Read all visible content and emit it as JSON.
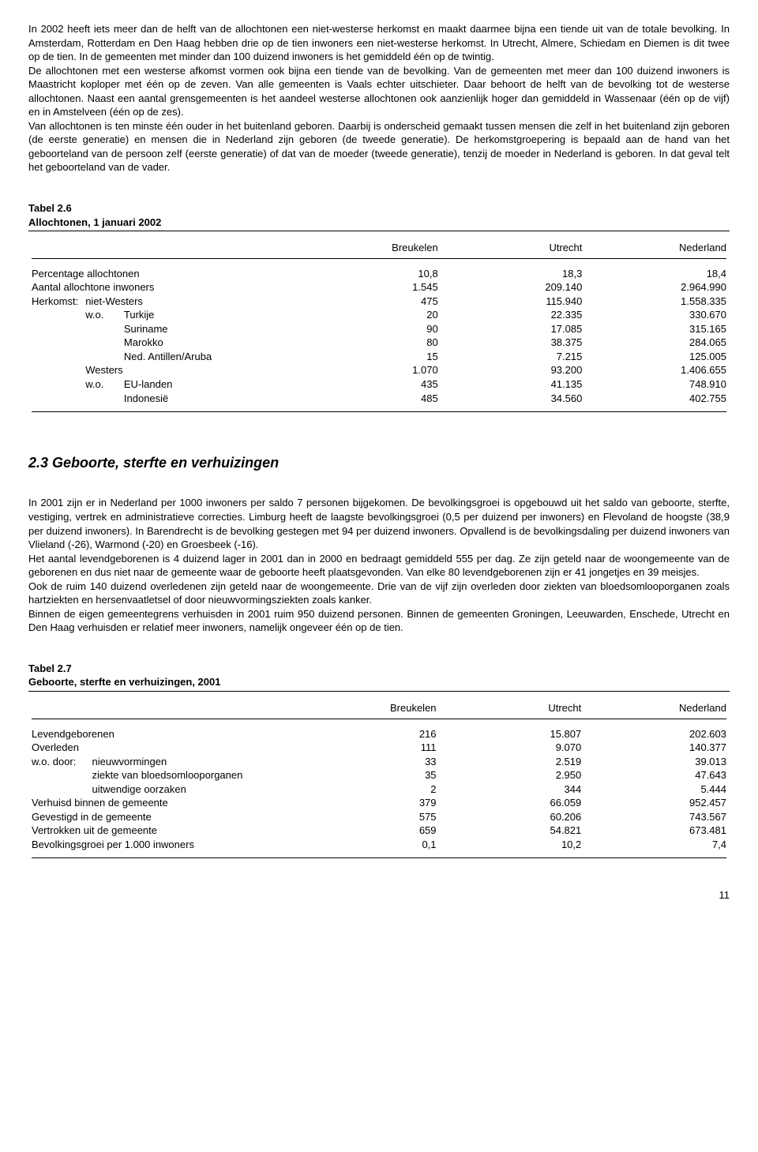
{
  "para1": "In 2002 heeft iets meer dan de helft van de allochtonen een niet-westerse herkomst en maakt daarmee bijna een tiende uit van de totale bevolking. In Amsterdam, Rotterdam en Den Haag hebben drie op de tien inwoners een niet-westerse herkomst. In Utrecht, Almere, Schiedam en Diemen is dit twee op de tien. In de gemeenten met minder dan 100 duizend inwoners is het gemiddeld één op de twintig.",
  "para2": "De allochtonen met een westerse afkomst vormen ook bijna een tiende van de bevolking. Van de gemeenten met meer dan 100 duizend inwoners is Maastricht koploper met één op de zeven. Van alle gemeenten is Vaals echter uitschieter. Daar behoort de helft van de bevolking tot de westerse allochtonen. Naast een aantal grensgemeenten is het aandeel westerse allochtonen ook aanzienlijk hoger dan gemiddeld in Wassenaar (één op de vijf) en in Amstelveen (één op de zes).",
  "para3": "Van allochtonen is ten minste één ouder in het buitenland geboren. Daarbij is onderscheid gemaakt tussen mensen die zelf in het buitenland zijn geboren (de eerste generatie) en mensen die in Nederland zijn geboren (de tweede generatie). De herkomstgroepering is bepaald aan de hand van het geboorteland van de persoon zelf (eerste generatie) of dat van de moeder (tweede generatie), tenzij de moeder in Nederland is geboren. In dat geval telt het geboorteland van de vader.",
  "table26": {
    "label": "Tabel 2.6",
    "title": "Allochtonen, 1 januari 2002",
    "cols": [
      "Breukelen",
      "Utrecht",
      "Nederland"
    ],
    "rows": [
      {
        "c": "",
        "l": "Percentage allochtonen",
        "v": [
          "10,8",
          "18,3",
          "18,4"
        ]
      },
      {
        "c": "",
        "l": "Aantal allochtone inwoners",
        "v": [
          "1.545",
          "209.140",
          "2.964.990"
        ]
      },
      {
        "c": "h0",
        "l": "Herkomst:",
        "l2": "niet-Westers",
        "v": [
          "475",
          "115.940",
          "1.558.335"
        ]
      },
      {
        "c": "wo",
        "l": "w.o.",
        "l2": "Turkije",
        "v": [
          "20",
          "22.335",
          "330.670"
        ]
      },
      {
        "c": "i2",
        "l": "Suriname",
        "v": [
          "90",
          "17.085",
          "315.165"
        ]
      },
      {
        "c": "i2",
        "l": "Marokko",
        "v": [
          "80",
          "38.375",
          "284.065"
        ]
      },
      {
        "c": "i2",
        "l": "Ned. Antillen/Aruba",
        "v": [
          "15",
          "7.215",
          "125.005"
        ]
      },
      {
        "c": "i1",
        "l": "Westers",
        "v": [
          "1.070",
          "93.200",
          "1.406.655"
        ]
      },
      {
        "c": "wo",
        "l": "w.o.",
        "l2": "EU-landen",
        "v": [
          "435",
          "41.135",
          "748.910"
        ]
      },
      {
        "c": "i2",
        "l": "Indonesië",
        "v": [
          "485",
          "34.560",
          "402.755"
        ]
      }
    ]
  },
  "section23": "2.3 Geboorte, sterfte en verhuizingen",
  "para4": "In 2001 zijn er in Nederland per 1000 inwoners per saldo 7 personen bijgekomen. De bevolkingsgroei is opgebouwd uit het saldo van geboorte, sterfte, vestiging, vertrek en administratieve correcties. Limburg heeft de laagste bevolkingsgroei (0,5 per duizend per inwoners) en Flevoland de hoogste (38,9 per duizend inwoners). In Barendrecht is de bevolking gestegen met 94 per duizend inwoners. Opvallend is de bevolkingsdaling per duizend inwoners van Vlieland (-26), Warmond (-20) en Groesbeek (-16).",
  "para5": "Het aantal levendgeborenen is 4 duizend lager in 2001 dan in 2000 en bedraagt gemiddeld 555 per dag. Ze zijn geteld naar de woongemeente van de geborenen en dus niet naar de gemeente waar de geboorte heeft plaatsgevonden. Van elke 80 levendgeborenen zijn er 41 jongetjes en 39 meisjes.",
  "para6": "Ook de ruim 140 duizend overledenen zijn geteld naar de woongemeente. Drie van de vijf zijn overleden door ziekten van bloedsomlooporganen zoals hartziekten en hersenvaatletsel of door nieuwvormingsziekten zoals kanker.",
  "para7": "Binnen de eigen gemeentegrens verhuisden in 2001 ruim 950 duizend personen. Binnen de gemeenten Groningen, Leeuwarden, Enschede, Utrecht en Den Haag verhuisden er relatief meer inwoners, namelijk ongeveer één op de tien.",
  "table27": {
    "label": "Tabel 2.7",
    "title": "Geboorte, sterfte en verhuizingen, 2001",
    "cols": [
      "Breukelen",
      "Utrecht",
      "Nederland"
    ],
    "rows": [
      {
        "c": "",
        "l": "Levendgeborenen",
        "v": [
          "216",
          "15.807",
          "202.603"
        ]
      },
      {
        "c": "",
        "l": "Overleden",
        "v": [
          "111",
          "9.070",
          "140.377"
        ]
      },
      {
        "c": "wd",
        "l": "w.o. door:",
        "l2": "nieuwvormingen",
        "v": [
          "33",
          "2.519",
          "39.013"
        ]
      },
      {
        "c": "i2b",
        "l": "ziekte van bloedsomlooporganen",
        "v": [
          "35",
          "2.950",
          "47.643"
        ]
      },
      {
        "c": "i2b",
        "l": "uitwendige oorzaken",
        "v": [
          "2",
          "344",
          "5.444"
        ]
      },
      {
        "c": "",
        "l": "Verhuisd binnen de gemeente",
        "v": [
          "379",
          "66.059",
          "952.457"
        ]
      },
      {
        "c": "",
        "l": "Gevestigd in de gemeente",
        "v": [
          "575",
          "60.206",
          "743.567"
        ]
      },
      {
        "c": "",
        "l": "Vertrokken uit de gemeente",
        "v": [
          "659",
          "54.821",
          "673.481"
        ]
      },
      {
        "c": "",
        "l": "Bevolkingsgroei per 1.000 inwoners",
        "v": [
          "0,1",
          "10,2",
          "7,4"
        ]
      }
    ]
  },
  "pagenum": "11"
}
